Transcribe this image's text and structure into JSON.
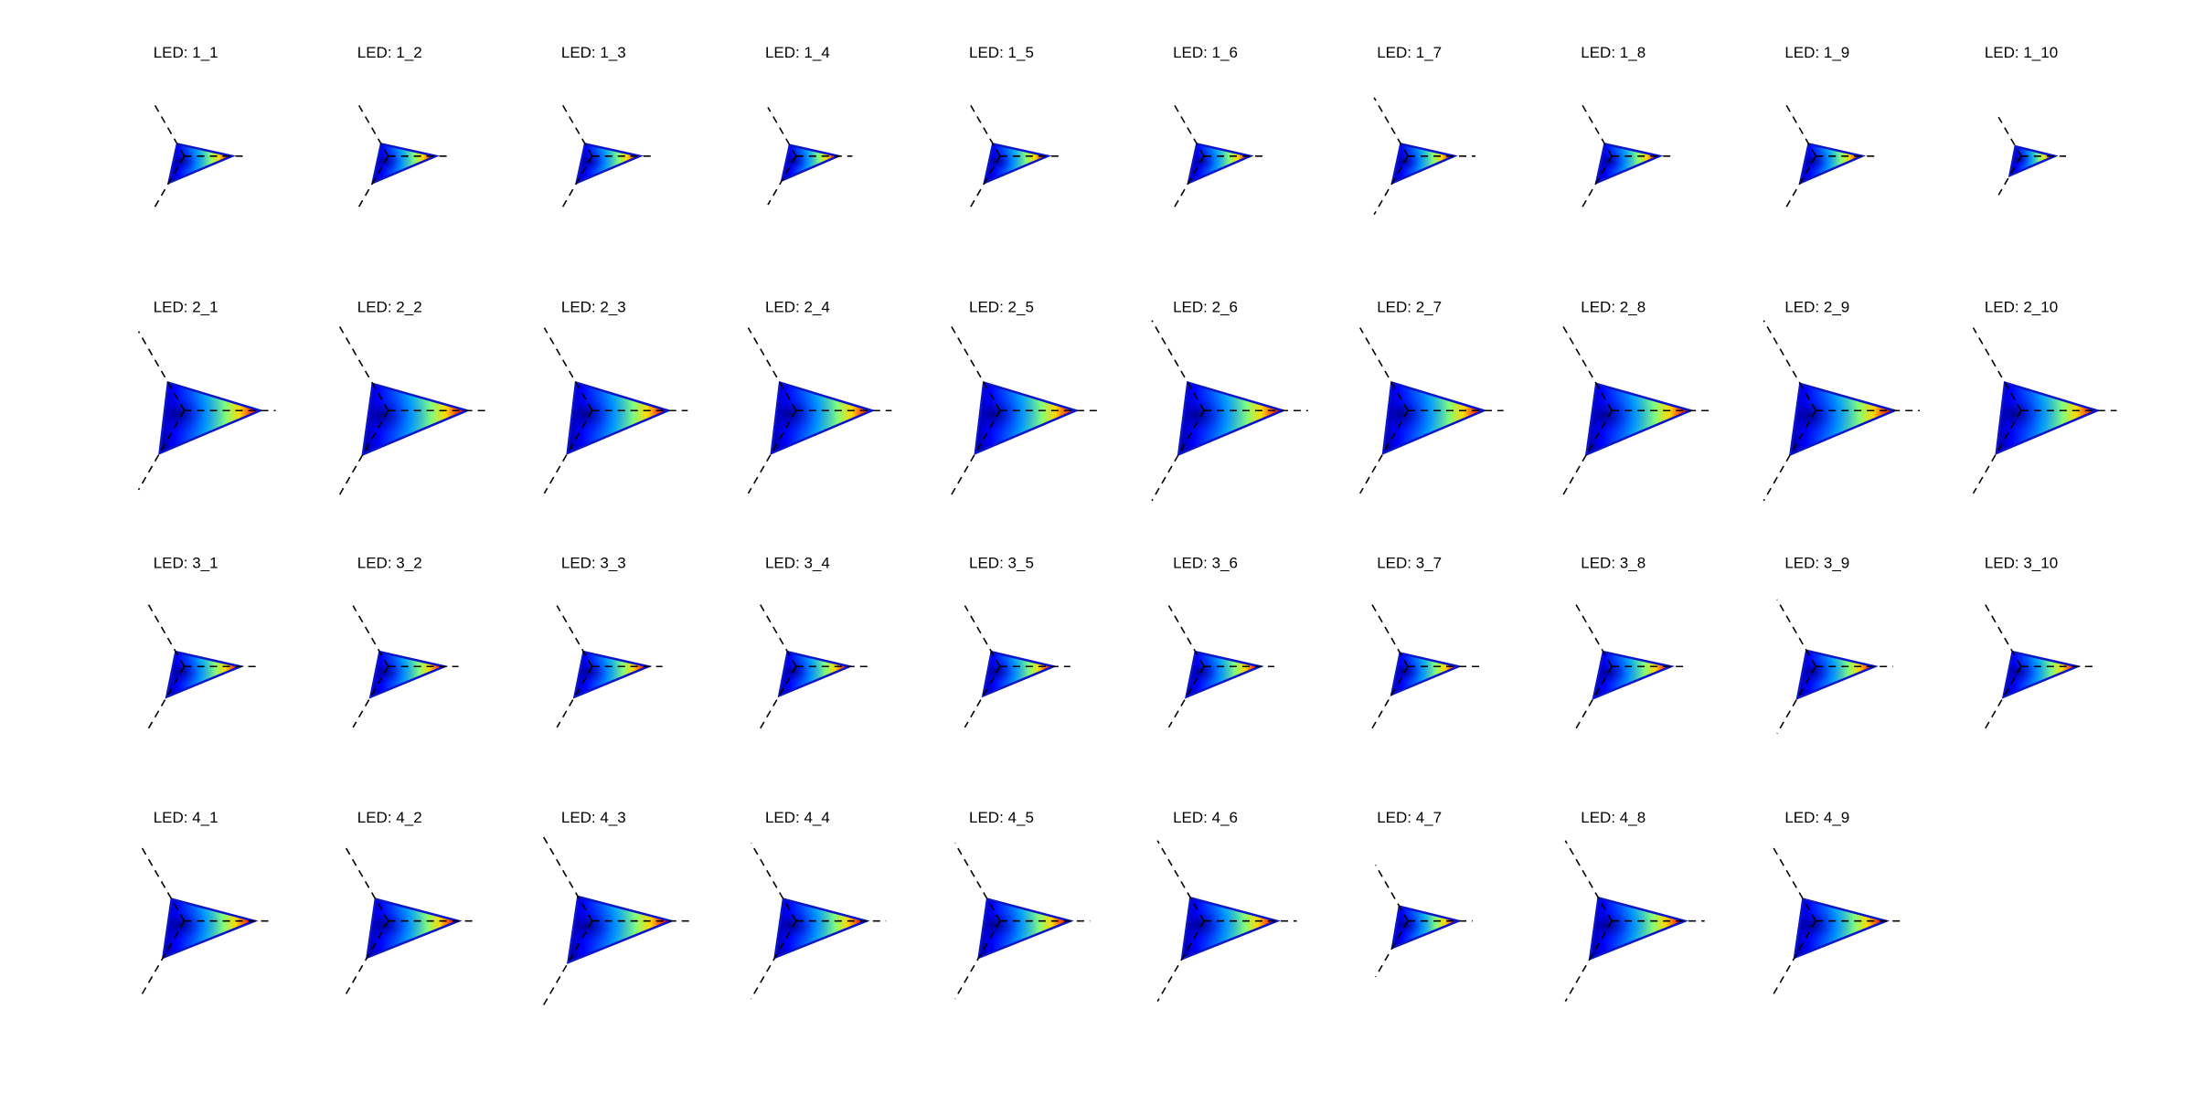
{
  "chart_data": [
    {
      "type": "radar",
      "title": "LED: 1_1",
      "values": [
        34,
        10,
        22
      ],
      "rlim": [
        0,
        45
      ]
    },
    {
      "type": "radar",
      "title": "LED: 1_2",
      "values": [
        34,
        10,
        22
      ],
      "rlim": [
        0,
        42
      ]
    },
    {
      "type": "radar",
      "title": "LED: 1_3",
      "values": [
        34,
        10,
        22
      ],
      "rlim": [
        0,
        45
      ]
    },
    {
      "type": "radar",
      "title": "LED: 1_4",
      "values": [
        30,
        9,
        20
      ],
      "rlim": [
        0,
        40
      ]
    },
    {
      "type": "radar",
      "title": "LED: 1_5",
      "values": [
        34,
        10,
        22
      ],
      "rlim": [
        0,
        42
      ]
    },
    {
      "type": "radar",
      "title": "LED: 1_6",
      "values": [
        33,
        10,
        22
      ],
      "rlim": [
        0,
        42
      ]
    },
    {
      "type": "radar",
      "title": "LED: 1_7",
      "values": [
        33,
        10,
        22
      ],
      "rlim": [
        0,
        48
      ]
    },
    {
      "type": "radar",
      "title": "LED: 1_8",
      "values": [
        34,
        10,
        22
      ],
      "rlim": [
        0,
        45
      ]
    },
    {
      "type": "radar",
      "title": "LED: 1_9",
      "values": [
        33,
        10,
        22
      ],
      "rlim": [
        0,
        42
      ]
    },
    {
      "type": "radar",
      "title": "LED: 1_10",
      "values": [
        24,
        8,
        16
      ],
      "rlim": [
        0,
        32
      ]
    },
    {
      "type": "radar",
      "title": "LED: 2_1",
      "values": [
        54,
        23,
        35
      ],
      "rlim": [
        0,
        65
      ]
    },
    {
      "type": "radar",
      "title": "LED: 2_2",
      "values": [
        56,
        22,
        36
      ],
      "rlim": [
        0,
        72
      ]
    },
    {
      "type": "radar",
      "title": "LED: 2_3",
      "values": [
        54,
        23,
        35
      ],
      "rlim": [
        0,
        68
      ]
    },
    {
      "type": "radar",
      "title": "LED: 2_4",
      "values": [
        54,
        23,
        35
      ],
      "rlim": [
        0,
        68
      ]
    },
    {
      "type": "radar",
      "title": "LED: 2_5",
      "values": [
        54,
        23,
        35
      ],
      "rlim": [
        0,
        70
      ]
    },
    {
      "type": "radar",
      "title": "LED: 2_6",
      "values": [
        56,
        23,
        36
      ],
      "rlim": [
        0,
        74
      ]
    },
    {
      "type": "radar",
      "title": "LED: 2_7",
      "values": [
        54,
        23,
        35
      ],
      "rlim": [
        0,
        68
      ]
    },
    {
      "type": "radar",
      "title": "LED: 2_8",
      "values": [
        56,
        22,
        36
      ],
      "rlim": [
        0,
        72
      ]
    },
    {
      "type": "radar",
      "title": "LED: 2_9",
      "values": [
        56,
        22,
        36
      ],
      "rlim": [
        0,
        74
      ]
    },
    {
      "type": "radar",
      "title": "LED: 2_10",
      "values": [
        54,
        23,
        35
      ],
      "rlim": [
        0,
        68
      ]
    },
    {
      "type": "radar",
      "title": "LED: 3_1",
      "values": [
        40,
        12,
        25
      ],
      "rlim": [
        0,
        52
      ]
    },
    {
      "type": "radar",
      "title": "LED: 3_2",
      "values": [
        40,
        12,
        25
      ],
      "rlim": [
        0,
        50
      ]
    },
    {
      "type": "radar",
      "title": "LED: 3_3",
      "values": [
        40,
        12,
        25
      ],
      "rlim": [
        0,
        50
      ]
    },
    {
      "type": "radar",
      "title": "LED: 3_4",
      "values": [
        38,
        12,
        24
      ],
      "rlim": [
        0,
        54
      ]
    },
    {
      "type": "radar",
      "title": "LED: 3_5",
      "values": [
        38,
        12,
        24
      ],
      "rlim": [
        0,
        50
      ]
    },
    {
      "type": "radar",
      "title": "LED: 3_6",
      "values": [
        40,
        12,
        25
      ],
      "rlim": [
        0,
        50
      ]
    },
    {
      "type": "radar",
      "title": "LED: 3_7",
      "values": [
        36,
        11,
        23
      ],
      "rlim": [
        0,
        52
      ]
    },
    {
      "type": "radar",
      "title": "LED: 3_8",
      "values": [
        42,
        12,
        26
      ],
      "rlim": [
        0,
        54
      ]
    },
    {
      "type": "radar",
      "title": "LED: 3_9",
      "values": [
        42,
        13,
        26
      ],
      "rlim": [
        0,
        55
      ]
    },
    {
      "type": "radar",
      "title": "LED: 3_10",
      "values": [
        40,
        12,
        25
      ],
      "rlim": [
        0,
        54
      ]
    },
    {
      "type": "radar",
      "title": "LED: 4_1",
      "values": [
        50,
        18,
        30
      ],
      "rlim": [
        0,
        60
      ]
    },
    {
      "type": "radar",
      "title": "LED: 4_2",
      "values": [
        50,
        18,
        30
      ],
      "rlim": [
        0,
        62
      ]
    },
    {
      "type": "radar",
      "title": "LED: 4_3",
      "values": [
        56,
        20,
        34
      ],
      "rlim": [
        0,
        70
      ]
    },
    {
      "type": "radar",
      "title": "LED: 4_4",
      "values": [
        50,
        18,
        30
      ],
      "rlim": [
        0,
        64
      ]
    },
    {
      "type": "radar",
      "title": "LED: 4_5",
      "values": [
        50,
        18,
        30
      ],
      "rlim": [
        0,
        64
      ]
    },
    {
      "type": "radar",
      "title": "LED: 4_6",
      "values": [
        52,
        19,
        31
      ],
      "rlim": [
        0,
        66
      ]
    },
    {
      "type": "radar",
      "title": "LED: 4_7",
      "values": [
        36,
        12,
        22
      ],
      "rlim": [
        0,
        46
      ]
    },
    {
      "type": "radar",
      "title": "LED: 4_8",
      "values": [
        52,
        19,
        31
      ],
      "rlim": [
        0,
        66
      ]
    },
    {
      "type": "radar",
      "title": "LED: 4_9",
      "values": [
        50,
        18,
        30
      ],
      "rlim": [
        0,
        60
      ]
    }
  ]
}
